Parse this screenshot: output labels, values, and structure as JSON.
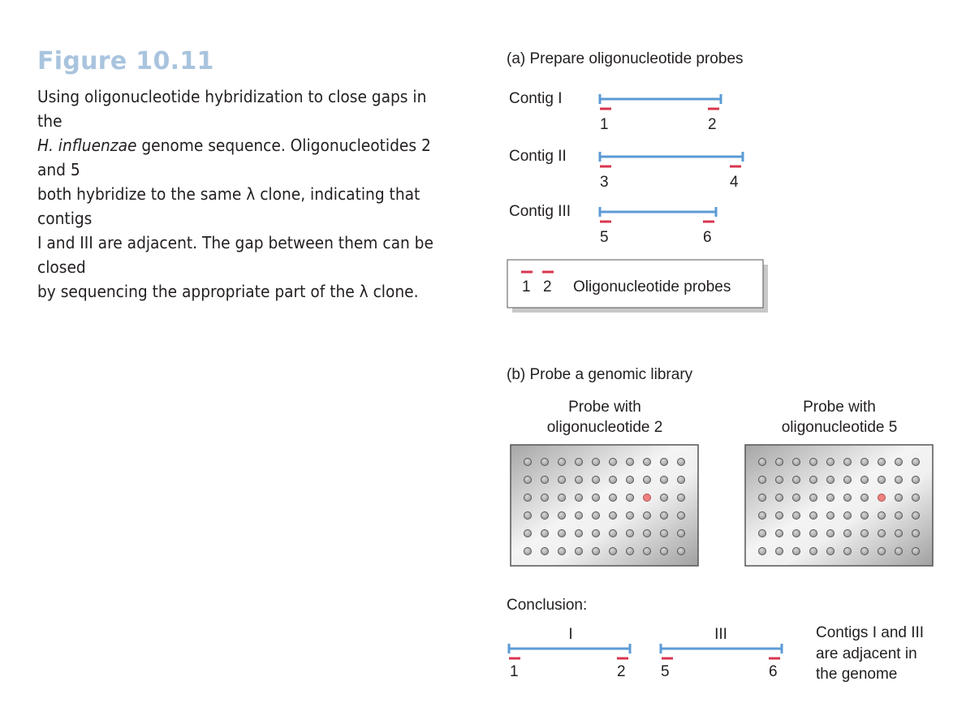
{
  "figure": {
    "title": "Figure 10.11",
    "caption_line1": "Using oligonucleotide hybridization to close gaps in the",
    "caption_italic": "H. influenzae",
    "caption_line2_rest": " genome sequence. Oligonucleotides 2 and 5",
    "caption_line3": "both hybridize to the same λ clone, indicating that contigs",
    "caption_line4": "I and III are adjacent. The gap between them can be closed",
    "caption_line5": "by sequencing the appropriate part of the λ clone."
  },
  "panel_a": {
    "heading": "(a)  Prepare oligonucleotide probes",
    "contigs": [
      {
        "label": "Contig I",
        "left_probe": "1",
        "right_probe": "2"
      },
      {
        "label": "Contig II",
        "left_probe": "3",
        "right_probe": "4"
      },
      {
        "label": "Contig III",
        "left_probe": "5",
        "right_probe": "6"
      }
    ],
    "legend": {
      "probe_a": "1",
      "probe_b": "2",
      "text": "Oligonucleotide probes"
    }
  },
  "panel_b": {
    "heading": "(b)  Probe a genomic library",
    "plates": [
      {
        "title_line1": "Probe with",
        "title_line2": "oligonucleotide 2",
        "positive": {
          "row": 3,
          "col": 8
        }
      },
      {
        "title_line1": "Probe with",
        "title_line2": "oligonucleotide 5",
        "positive": {
          "row": 3,
          "col": 8
        }
      }
    ],
    "grid": {
      "rows": 6,
      "cols": 10
    }
  },
  "conclusion": {
    "heading": "Conclusion:",
    "contig_left": {
      "label": "I",
      "left_probe": "1",
      "right_probe": "2"
    },
    "contig_right": {
      "label": "III",
      "left_probe": "5",
      "right_probe": "6"
    },
    "text_line1": "Contigs I and III",
    "text_line2": "are adjacent in",
    "text_line3": "the genome"
  },
  "colors": {
    "contig_line": "#5b9bd5",
    "probe": "#d8364f",
    "positive_well": "#f08080",
    "title": "#a9c4de"
  }
}
